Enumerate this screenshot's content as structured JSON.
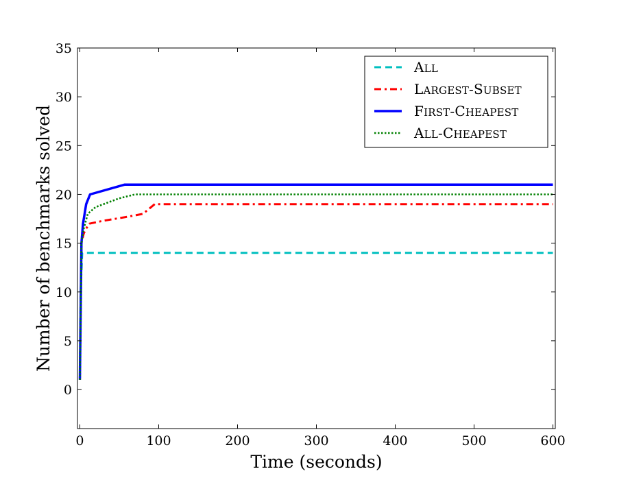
{
  "chart_data": {
    "type": "line",
    "title": "",
    "xlabel": "Time (seconds)",
    "ylabel": "Number of benchmarks solved",
    "xlim": [
      -3,
      603
    ],
    "ylim": [
      -4,
      35
    ],
    "xticks": [
      0,
      100,
      200,
      300,
      400,
      500,
      600
    ],
    "yticks": [
      0,
      5,
      10,
      15,
      20,
      25,
      30,
      35
    ],
    "grid": false,
    "legend_position": "top-right",
    "series": [
      {
        "name": "All",
        "color": "#00bfbf",
        "dash": "dashed",
        "x": [
          0,
          1,
          3,
          600
        ],
        "y": [
          1,
          10,
          14,
          14
        ]
      },
      {
        "name": "Largest-Subset",
        "color": "#ff0000",
        "dash": "dashdot",
        "x": [
          0,
          2,
          5,
          8,
          12,
          30,
          60,
          80,
          95,
          150,
          600
        ],
        "y": [
          1,
          15,
          16,
          16.5,
          17,
          17.3,
          17.7,
          18,
          19,
          19,
          19
        ]
      },
      {
        "name": "First-Cheapest",
        "color": "#0000ff",
        "dash": "solid",
        "x": [
          0,
          2,
          4,
          8,
          13,
          57,
          600
        ],
        "y": [
          1,
          15,
          17,
          19,
          20,
          21,
          21
        ]
      },
      {
        "name": "All-Cheapest",
        "color": "#008000",
        "dash": "dotted",
        "x": [
          0,
          2,
          5,
          10,
          20,
          50,
          70,
          600
        ],
        "y": [
          1,
          15,
          16.5,
          18,
          18.7,
          19.6,
          20,
          20
        ]
      }
    ]
  }
}
